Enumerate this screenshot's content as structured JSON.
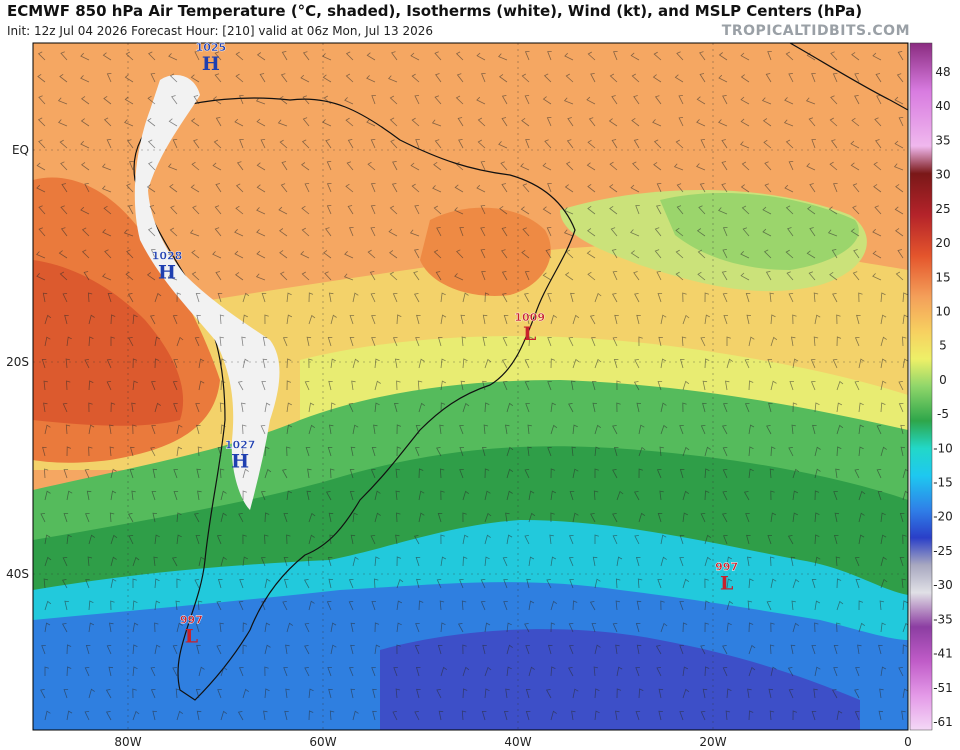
{
  "header": {
    "title": "ECMWF 850 hPa Air Temperature (°C, shaded), Isotherms (white), Wind (kt), and MSLP Centers (hPa)",
    "subtitle": "Init: 12z Jul 04 2026   Forecast Hour: [210]   valid at 06z Mon, Jul 13 2026",
    "brand": "TROPICALTIDBITS.COM"
  },
  "axes": {
    "lat_labels": [
      {
        "text": "EQ",
        "lat": 0
      },
      {
        "text": "20S",
        "lat": -20
      },
      {
        "text": "40S",
        "lat": -40
      }
    ],
    "lon_labels": [
      {
        "text": "80W",
        "lon": -80
      },
      {
        "text": "60W",
        "lon": -60
      },
      {
        "text": "40W",
        "lon": -40
      },
      {
        "text": "20W",
        "lon": -20
      },
      {
        "text": "0",
        "lon": 0
      }
    ]
  },
  "colorbar": {
    "ticks": [
      "48",
      "40",
      "35",
      "30",
      "25",
      "20",
      "15",
      "10",
      "5",
      "0",
      "-5",
      "-10",
      "-15",
      "-20",
      "-25",
      "-30",
      "-35",
      "-41",
      "-51",
      "-61"
    ]
  },
  "pressure_centers": [
    {
      "type": "H",
      "value": "1025",
      "color": "#1f3fb0",
      "lon": -71.5,
      "lat": 8.5
    },
    {
      "type": "H",
      "value": "1028",
      "color": "#1f3fb0",
      "lon": -76.0,
      "lat": -11.2
    },
    {
      "type": "H",
      "value": "1027",
      "color": "#1f3fb0",
      "lon": -68.5,
      "lat": -29.0
    },
    {
      "type": "L",
      "value": "1009",
      "color": "#c8222c",
      "lon": -38.8,
      "lat": -17.0
    },
    {
      "type": "L",
      "value": "997",
      "color": "#c8222c",
      "lon": -18.6,
      "lat": -40.5
    },
    {
      "type": "L",
      "value": "997",
      "color": "#c8222c",
      "lon": -73.5,
      "lat": -45.5
    }
  ]
}
